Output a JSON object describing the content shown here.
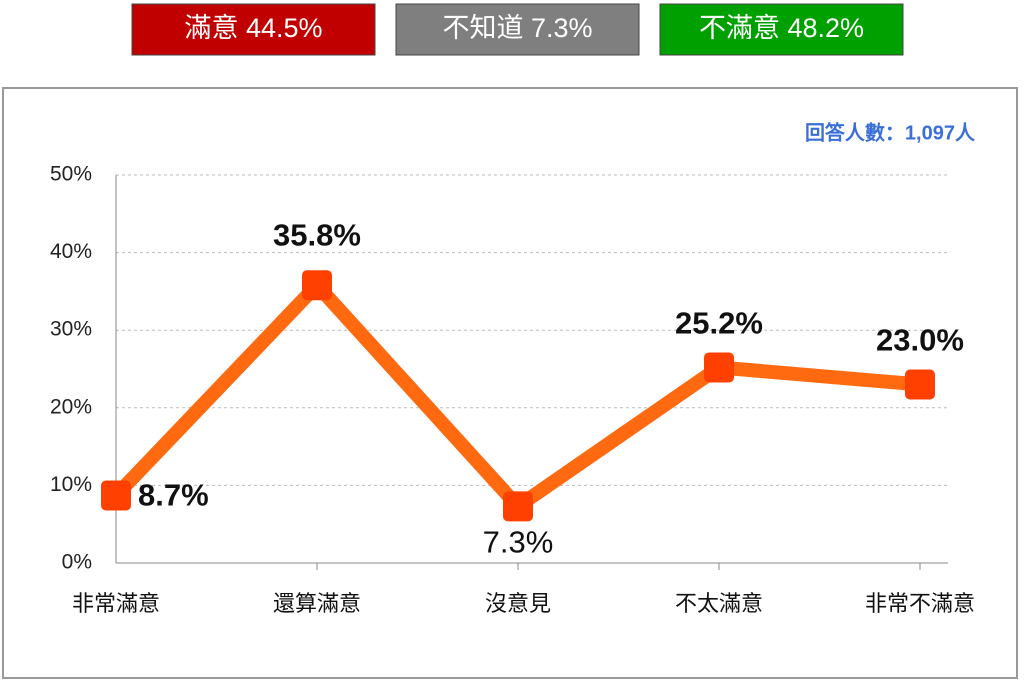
{
  "summary": [
    {
      "label": "滿意 44.5%",
      "color": "#c00000"
    },
    {
      "label": "不知道 7.3%",
      "color": "#7f7f7f"
    },
    {
      "label": "不滿意 48.2%",
      "color": "#00a000"
    }
  ],
  "chart_data": {
    "type": "line",
    "subtitle": "回答人數：1,097人",
    "categories": [
      "非常滿意",
      "還算滿意",
      "沒意見",
      "不太滿意",
      "非常不滿意"
    ],
    "series": [
      {
        "name": null,
        "color": "#ff6a10",
        "marker_color": "#ff4000",
        "values": [
          8.7,
          35.8,
          7.3,
          25.2,
          23.0
        ],
        "value_labels": [
          "8.7%",
          "35.8%",
          "7.3%",
          "25.2%",
          "23.0%"
        ]
      }
    ],
    "ylim": [
      0,
      50
    ],
    "yticks": [
      {
        "value": 0,
        "label": "0%"
      },
      {
        "value": 10,
        "label": "10%"
      },
      {
        "value": 20,
        "label": "20%"
      },
      {
        "value": 30,
        "label": "30%"
      },
      {
        "value": 40,
        "label": "40%"
      },
      {
        "value": 50,
        "label": "50%"
      }
    ],
    "grid": true
  }
}
